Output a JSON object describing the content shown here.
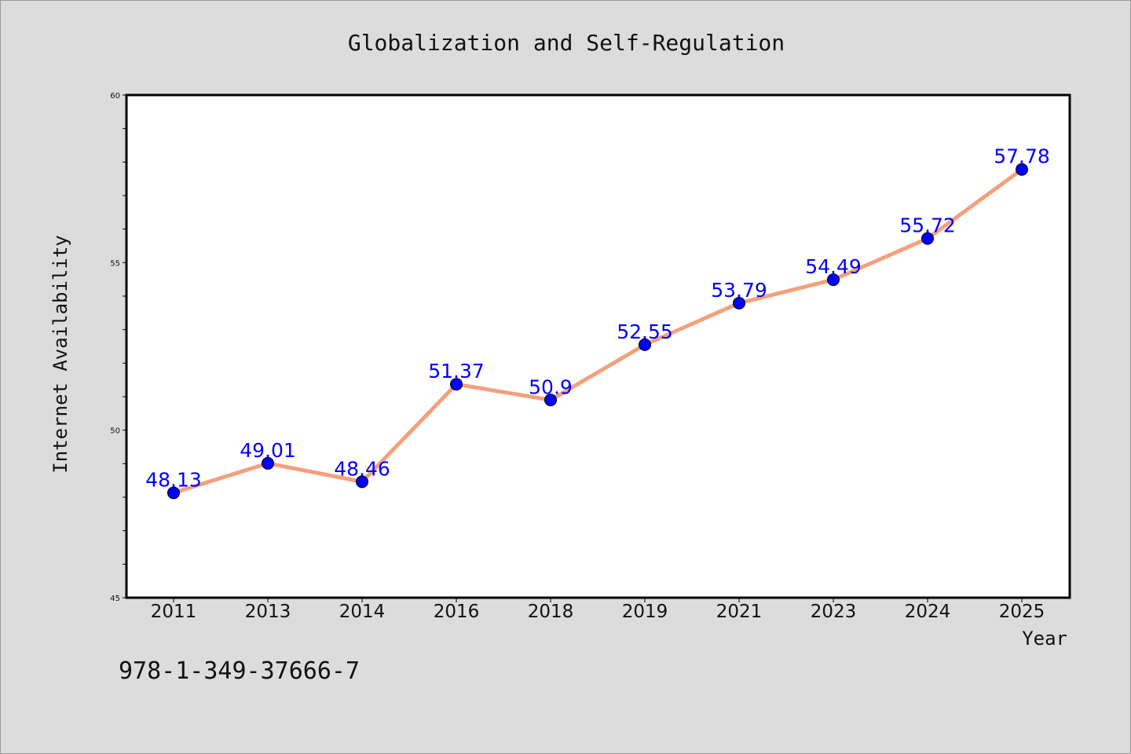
{
  "chart_data": {
    "type": "line",
    "title": "Globalization and Self-Regulation",
    "xlabel": "Year",
    "ylabel": "Internet Availability",
    "categories": [
      "2011",
      "2013",
      "2014",
      "2016",
      "2018",
      "2019",
      "2021",
      "2023",
      "2024",
      "2025"
    ],
    "series": [
      {
        "values": [
          48.13,
          49.01,
          48.46,
          51.37,
          50.9,
          52.55,
          53.79,
          54.49,
          55.72,
          57.78
        ],
        "labels": [
          "48.13",
          "49.01",
          "48.46",
          "51.37",
          "50.9",
          "52.55",
          "53.79",
          "54.49",
          "55.72",
          "57.78"
        ]
      }
    ],
    "ylim": [
      45,
      60
    ],
    "yticks": [
      "45",
      "50",
      "55",
      "60"
    ],
    "grid": false,
    "colors": {
      "line": "#f4a07c",
      "marker": "#0000ff",
      "label": "#0000ff"
    }
  },
  "footnote": "978-1-349-37666-7"
}
